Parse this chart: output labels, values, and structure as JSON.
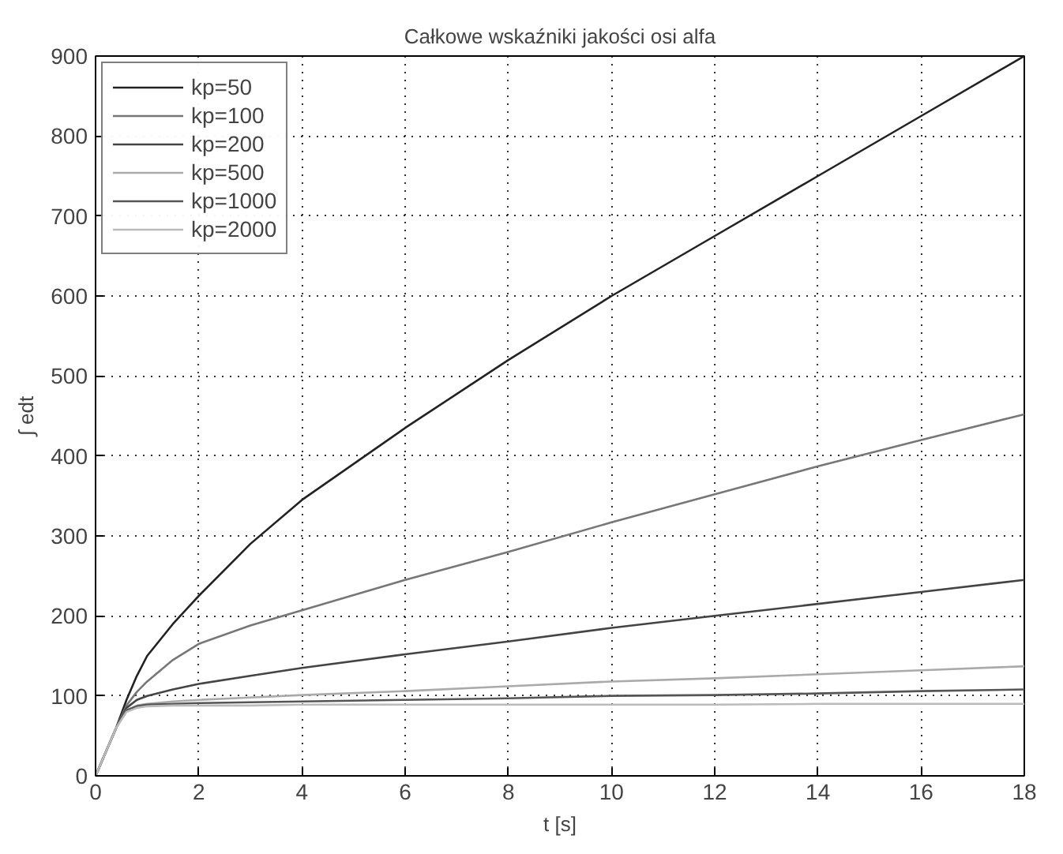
{
  "chart_data": {
    "type": "line",
    "title": "Całkowe wskaźniki jakości osi alfa",
    "xlabel": "t [s]",
    "ylabel": "∫ edt",
    "x": [
      0,
      0.2,
      0.4,
      0.6,
      0.8,
      1,
      1.5,
      2,
      3,
      4,
      6,
      8,
      10,
      12,
      14,
      16,
      18
    ],
    "series": [
      {
        "name": "kp=50",
        "color": "#222222",
        "values": [
          0,
          30,
          60,
          95,
          125,
          150,
          190,
          225,
          290,
          345,
          435,
          520,
          600,
          675,
          750,
          825,
          900
        ]
      },
      {
        "name": "kp=100",
        "color": "#777777",
        "values": [
          0,
          30,
          60,
          88,
          105,
          118,
          145,
          165,
          188,
          207,
          245,
          280,
          317,
          352,
          387,
          420,
          452
        ]
      },
      {
        "name": "kp=200",
        "color": "#444444",
        "values": [
          0,
          30,
          60,
          85,
          95,
          100,
          108,
          115,
          125,
          135,
          152,
          168,
          185,
          200,
          215,
          230,
          245
        ]
      },
      {
        "name": "kp=500",
        "color": "#aaaaaa",
        "values": [
          0,
          30,
          60,
          82,
          88,
          90,
          93,
          95,
          98,
          101,
          106,
          112,
          118,
          122,
          127,
          132,
          137
        ]
      },
      {
        "name": "kp=1000",
        "color": "#555555",
        "values": [
          0,
          30,
          60,
          82,
          87,
          89,
          90,
          91,
          92,
          93,
          95,
          97,
          100,
          101,
          103,
          106,
          108
        ]
      },
      {
        "name": "kp=2000",
        "color": "#bbbbbb",
        "values": [
          0,
          30,
          60,
          80,
          85,
          87,
          88,
          88,
          88,
          89,
          89,
          89,
          89,
          89,
          90,
          90,
          90
        ]
      }
    ],
    "xlim": [
      0,
      18
    ],
    "ylim": [
      0,
      900
    ],
    "xticks": [
      0,
      2,
      4,
      6,
      8,
      10,
      12,
      14,
      16,
      18
    ],
    "yticks": [
      0,
      100,
      200,
      300,
      400,
      500,
      600,
      700,
      800,
      900
    ],
    "grid": true,
    "legend": "top left",
    "marker": "none",
    "line_style": "solid"
  }
}
